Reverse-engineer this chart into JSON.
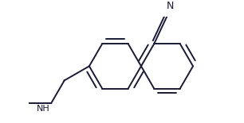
{
  "background_color": "#ffffff",
  "line_color": "#1a1a35",
  "text_color": "#1a1a35",
  "figsize": [
    3.06,
    1.55
  ],
  "dpi": 100,
  "lw": 1.4
}
